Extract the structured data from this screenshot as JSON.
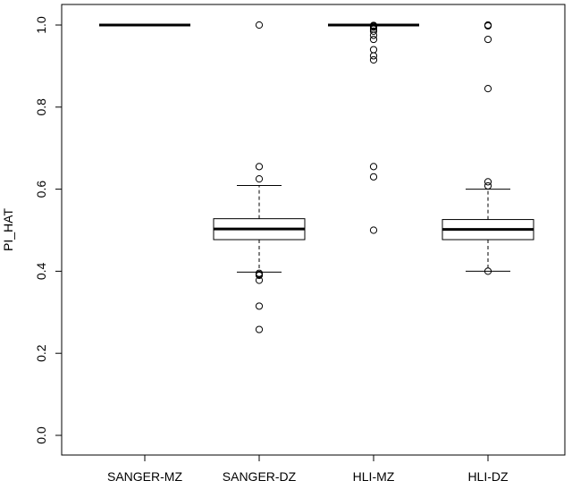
{
  "chart_data": {
    "type": "boxplot",
    "title": "",
    "xlabel": "",
    "ylabel": "PI_HAT",
    "ylim": [
      0,
      1
    ],
    "yticks": [
      0.0,
      0.2,
      0.4,
      0.6,
      0.8,
      1.0
    ],
    "ytick_labels": [
      "0.0",
      "0.2",
      "0.4",
      "0.6",
      "0.8",
      "1.0"
    ],
    "grid": false,
    "legend": "none",
    "categories": [
      "SANGER-MZ",
      "SANGER-DZ",
      "HLI-MZ",
      "HLI-DZ"
    ],
    "boxes": [
      {
        "whisker_low": 1.0,
        "q1": 1.0,
        "median": 1.0,
        "q3": 1.0,
        "whisker_high": 1.0,
        "outliers": []
      },
      {
        "whisker_low": 0.398,
        "q1": 0.477,
        "median": 0.503,
        "q3": 0.528,
        "whisker_high": 0.609,
        "outliers": [
          1.0,
          0.655,
          0.625,
          0.395,
          0.392,
          0.39,
          0.378,
          0.315,
          0.258
        ]
      },
      {
        "whisker_low": 1.0,
        "q1": 1.0,
        "median": 1.0,
        "q3": 1.0,
        "whisker_high": 1.0,
        "outliers": [
          0.999,
          0.997,
          0.995,
          0.99,
          0.985,
          0.975,
          0.965,
          0.94,
          0.925,
          0.915,
          0.655,
          0.63,
          0.5
        ]
      },
      {
        "whisker_low": 0.4,
        "q1": 0.477,
        "median": 0.502,
        "q3": 0.526,
        "whisker_high": 0.6,
        "outliers": [
          1.0,
          0.998,
          0.965,
          0.845,
          0.618,
          0.608,
          0.4
        ]
      }
    ]
  }
}
